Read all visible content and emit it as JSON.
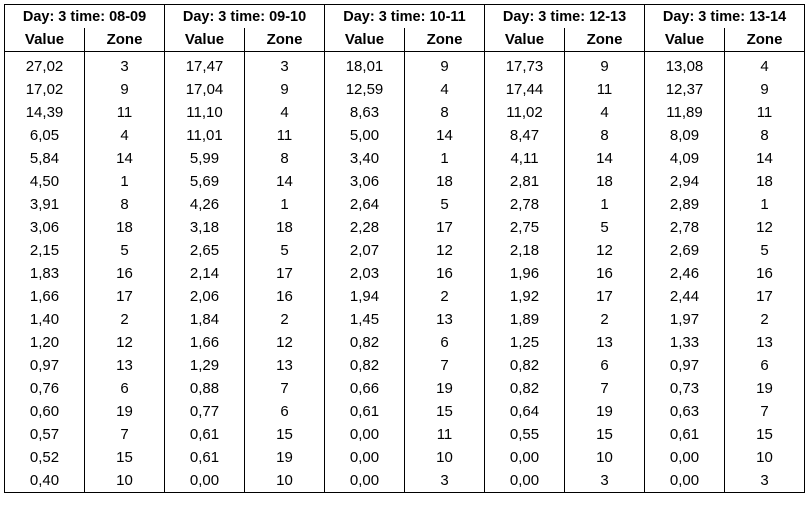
{
  "columns_header": {
    "value": "Value",
    "zone": "Zone"
  },
  "groups": [
    {
      "title": "Day: 3  time: 08-09",
      "values": [
        "27,02",
        "17,02",
        "14,39",
        "6,05",
        "5,84",
        "4,50",
        "3,91",
        "3,06",
        "2,15",
        "1,83",
        "1,66",
        "1,40",
        "1,20",
        "0,97",
        "0,76",
        "0,60",
        "0,57",
        "0,52",
        "0,40"
      ],
      "zones": [
        "3",
        "9",
        "11",
        "4",
        "14",
        "1",
        "8",
        "18",
        "5",
        "16",
        "17",
        "2",
        "12",
        "13",
        "6",
        "19",
        "7",
        "15",
        "10"
      ]
    },
    {
      "title": "Day: 3  time: 09-10",
      "values": [
        "17,47",
        "17,04",
        "11,10",
        "11,01",
        "5,99",
        "5,69",
        "4,26",
        "3,18",
        "2,65",
        "2,14",
        "2,06",
        "1,84",
        "1,66",
        "1,29",
        "0,88",
        "0,77",
        "0,61",
        "0,61",
        "0,00"
      ],
      "zones": [
        "3",
        "9",
        "4",
        "11",
        "8",
        "14",
        "1",
        "18",
        "5",
        "17",
        "16",
        "2",
        "12",
        "13",
        "7",
        "6",
        "15",
        "19",
        "10"
      ]
    },
    {
      "title": "Day: 3  time: 10-11",
      "values": [
        "18,01",
        "12,59",
        "8,63",
        "5,00",
        "3,40",
        "3,06",
        "2,64",
        "2,28",
        "2,07",
        "2,03",
        "1,94",
        "1,45",
        "0,82",
        "0,82",
        "0,66",
        "0,61",
        "0,00",
        "0,00",
        "0,00"
      ],
      "zones": [
        "9",
        "4",
        "8",
        "14",
        "1",
        "18",
        "5",
        "17",
        "12",
        "16",
        "2",
        "13",
        "6",
        "7",
        "19",
        "15",
        "11",
        "10",
        "3"
      ]
    },
    {
      "title": "Day: 3  time: 12-13",
      "values": [
        "17,73",
        "17,44",
        "11,02",
        "8,47",
        "4,11",
        "2,81",
        "2,78",
        "2,75",
        "2,18",
        "1,96",
        "1,92",
        "1,89",
        "1,25",
        "0,82",
        "0,82",
        "0,64",
        "0,55",
        "0,00",
        "0,00"
      ],
      "zones": [
        "9",
        "11",
        "4",
        "8",
        "14",
        "18",
        "1",
        "5",
        "12",
        "16",
        "17",
        "2",
        "13",
        "6",
        "7",
        "19",
        "15",
        "10",
        "3"
      ]
    },
    {
      "title": "Day: 3  time: 13-14",
      "values": [
        "13,08",
        "12,37",
        "11,89",
        "8,09",
        "4,09",
        "2,94",
        "2,89",
        "2,78",
        "2,69",
        "2,46",
        "2,44",
        "1,97",
        "1,33",
        "0,97",
        "0,73",
        "0,63",
        "0,61",
        "0,00",
        "0,00"
      ],
      "zones": [
        "4",
        "9",
        "11",
        "8",
        "14",
        "18",
        "1",
        "12",
        "5",
        "16",
        "17",
        "2",
        "13",
        "6",
        "19",
        "7",
        "15",
        "10",
        "3"
      ]
    }
  ]
}
